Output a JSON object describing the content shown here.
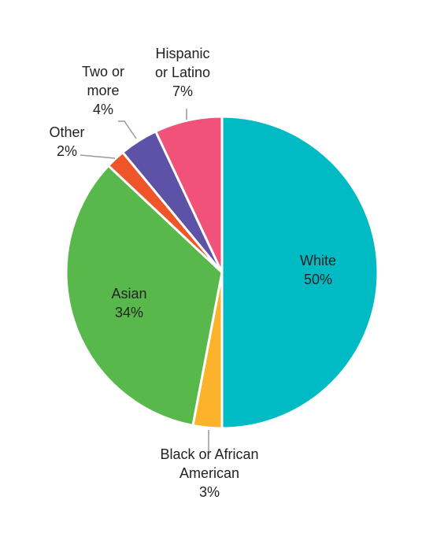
{
  "chart_data": {
    "type": "pie",
    "title": "",
    "slices": [
      {
        "label": "White",
        "value": 50,
        "value_label": "50%",
        "color": "#00BAC4"
      },
      {
        "label": "Black or African American",
        "value": 3,
        "value_label": "3%",
        "color": "#FDB22B"
      },
      {
        "label": "Asian",
        "value": 34,
        "value_label": "34%",
        "color": "#58B84C"
      },
      {
        "label": "Other",
        "value": 2,
        "value_label": "2%",
        "color": "#EE5528"
      },
      {
        "label": "Two or more",
        "value": 4,
        "value_label": "4%",
        "color": "#5D52A5"
      },
      {
        "label": "Hispanic or Latino",
        "value": 7,
        "value_label": "7%",
        "color": "#F0527A"
      }
    ],
    "start": "12 o'clock",
    "direction": "clockwise",
    "legend": "none"
  }
}
